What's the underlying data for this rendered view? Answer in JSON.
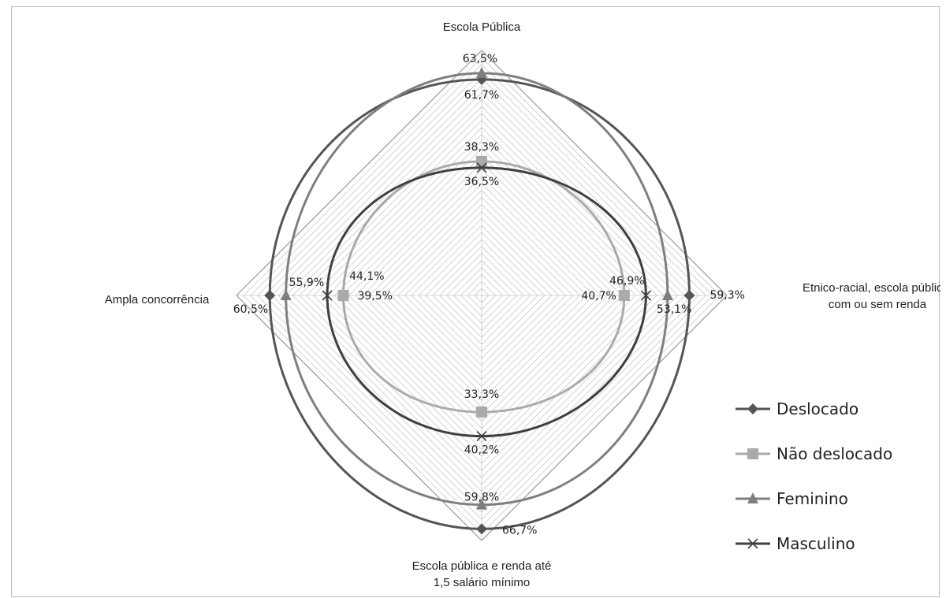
{
  "chart_data": {
    "type": "radar",
    "axes": [
      "Escola Pública",
      "Etnico-racial, escola pública,\ncom ou sem renda",
      "Escola pública e renda até\n1,5 salário mínimo",
      "Ampla concorrência"
    ],
    "rlim": [
      0,
      70
    ],
    "grid": true,
    "legend_position": "right",
    "series": [
      {
        "name": "Deslocado",
        "marker": "diamond",
        "color": "#555555",
        "values": [
          61.7,
          59.3,
          66.7,
          60.5
        ],
        "labels": [
          "61,7%",
          "59,3%",
          "66,7%",
          "60,5%"
        ]
      },
      {
        "name": "Não deslocado",
        "marker": "square",
        "color": "#aaaaaa",
        "values": [
          38.3,
          40.7,
          33.3,
          39.5
        ],
        "labels": [
          "38,3%",
          "40,7%",
          "33,3%",
          "39,5%"
        ]
      },
      {
        "name": "Feminino",
        "marker": "triangle",
        "color": "#7f7f7f",
        "values": [
          63.5,
          53.1,
          59.8,
          55.9
        ],
        "labels": [
          "63,5%",
          "53,1%",
          "59,8%",
          "55,9%"
        ]
      },
      {
        "name": "Masculino",
        "marker": "x",
        "color": "#3f3f3f",
        "values": [
          36.5,
          46.9,
          40.2,
          44.1
        ],
        "labels": [
          "36,5%",
          "46,9%",
          "40,2%",
          "44,1%"
        ]
      }
    ]
  }
}
